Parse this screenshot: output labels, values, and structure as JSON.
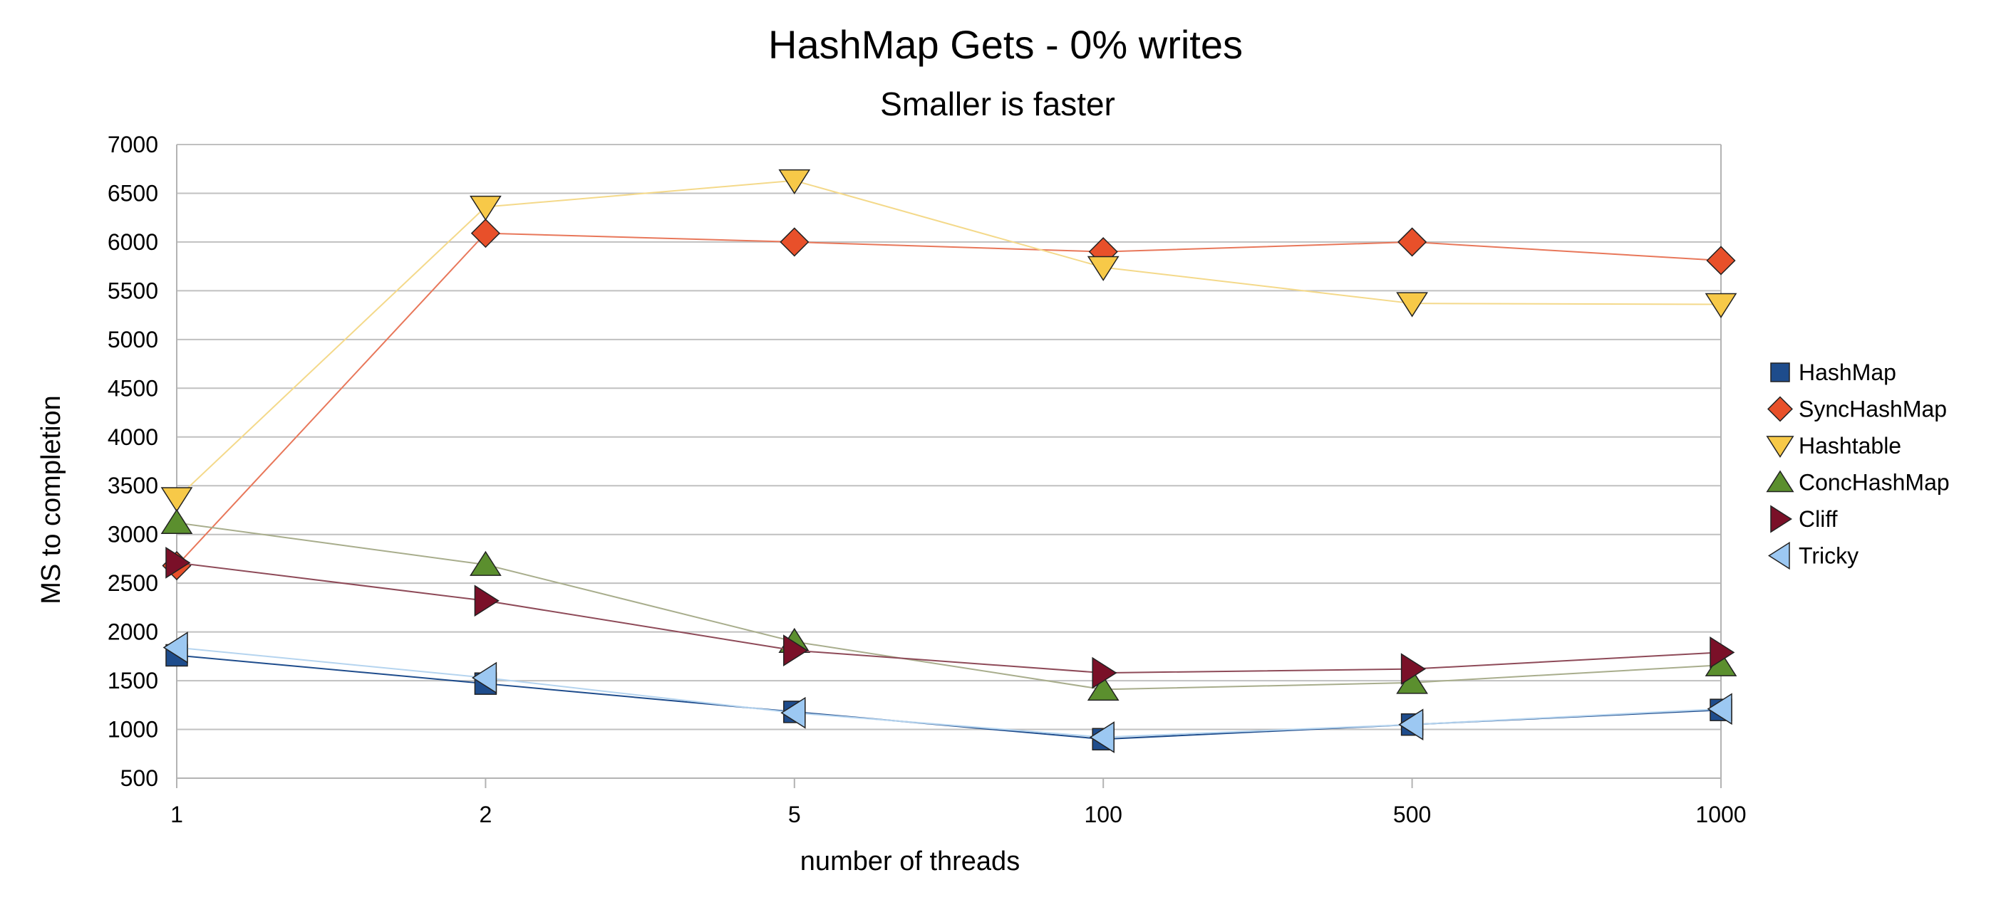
{
  "chart_data": {
    "type": "line",
    "title": "HashMap Gets - 0% writes",
    "subtitle": "Smaller is faster",
    "xlabel": "number of threads",
    "ylabel": "MS to completion",
    "categories": [
      "1",
      "2",
      "5",
      "100",
      "500",
      "1000"
    ],
    "ylim": [
      500,
      7000
    ],
    "yticks": [
      500,
      1000,
      1500,
      2000,
      2500,
      3000,
      3500,
      4000,
      4500,
      5000,
      5500,
      6000,
      6500,
      7000
    ],
    "grid": "horizontal",
    "legend_position": "right",
    "series": [
      {
        "name": "HashMap",
        "marker": "square",
        "color": "#1e4c8c",
        "line_color": "#1e4c8c",
        "values": [
          1760,
          1470,
          1180,
          900,
          1050,
          1200
        ]
      },
      {
        "name": "SyncHashMap",
        "marker": "diamond",
        "color": "#e8502a",
        "line_color": "#e8775a",
        "values": [
          2680,
          6090,
          6000,
          5900,
          6000,
          5810
        ]
      },
      {
        "name": "Hashtable",
        "marker": "triangle-down",
        "color": "#f7c948",
        "line_color": "#f4d98a",
        "values": [
          3370,
          6360,
          6630,
          5740,
          5370,
          5360
        ]
      },
      {
        "name": "ConcHashMap",
        "marker": "triangle-up",
        "color": "#5b8f2e",
        "line_color": "#a8ad8c",
        "values": [
          3120,
          2690,
          1900,
          1410,
          1480,
          1660
        ]
      },
      {
        "name": "Cliff",
        "marker": "triangle-right",
        "color": "#7a1028",
        "line_color": "#8e4a58",
        "values": [
          2710,
          2320,
          1810,
          1580,
          1620,
          1790
        ]
      },
      {
        "name": "Tricky",
        "marker": "triangle-left",
        "color": "#9cc8f2",
        "line_color": "#b5d4ef",
        "values": [
          1840,
          1530,
          1170,
          920,
          1050,
          1210
        ]
      }
    ]
  }
}
